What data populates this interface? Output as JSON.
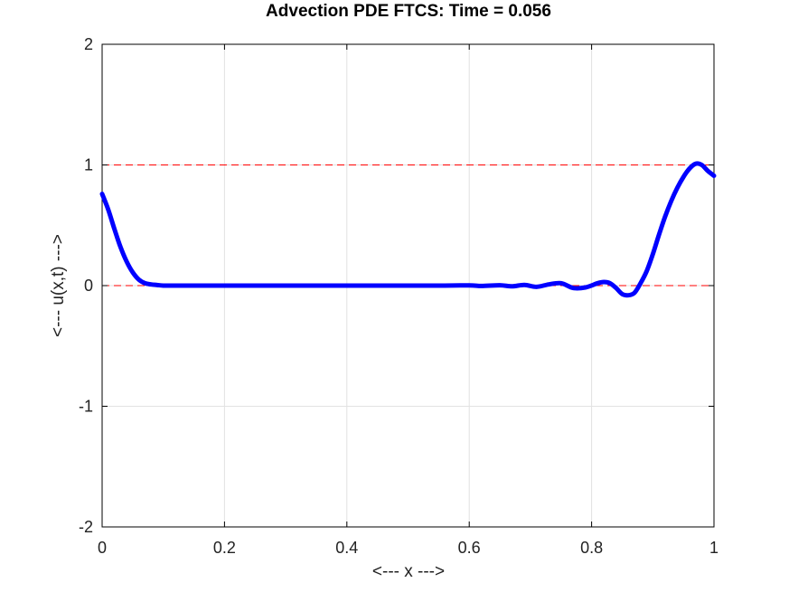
{
  "chart_data": {
    "type": "line",
    "title": "Advection PDE FTCS: Time = 0.056",
    "xlabel": "<--- x --->",
    "ylabel": "<--- u(x,t) --->",
    "xlim": [
      0,
      1
    ],
    "ylim": [
      -2,
      2
    ],
    "xticks": [
      0,
      0.2,
      0.4,
      0.6,
      0.8,
      1
    ],
    "xtick_labels": [
      "0",
      "0.2",
      "0.4",
      "0.6",
      "0.8",
      "1"
    ],
    "yticks": [
      -2,
      -1,
      0,
      1,
      2
    ],
    "ytick_labels": [
      "-2",
      "-1",
      "0",
      "1",
      "2"
    ],
    "grid": true,
    "reference_lines": [
      {
        "y": 1,
        "style": "dashed",
        "color": "#ff0000"
      },
      {
        "y": 0,
        "style": "dashed",
        "color": "#ff0000"
      }
    ],
    "series": [
      {
        "color": "#0000ff",
        "x": [
          0,
          0.01,
          0.02,
          0.03,
          0.04,
          0.05,
          0.06,
          0.07,
          0.08,
          0.09,
          0.1,
          0.12,
          0.15,
          0.2,
          0.3,
          0.4,
          0.5,
          0.55,
          0.6,
          0.62,
          0.65,
          0.67,
          0.69,
          0.71,
          0.73,
          0.75,
          0.77,
          0.79,
          0.81,
          0.82,
          0.83,
          0.84,
          0.85,
          0.86,
          0.87,
          0.88,
          0.89,
          0.9,
          0.91,
          0.92,
          0.93,
          0.94,
          0.95,
          0.96,
          0.97,
          0.98,
          0.99,
          1.0
        ],
        "y": [
          0.76,
          0.63,
          0.47,
          0.32,
          0.2,
          0.11,
          0.05,
          0.02,
          0.01,
          0.005,
          0.0,
          0.0,
          0.0,
          0.0,
          0.0,
          0.0,
          0.0,
          0.0,
          0.002,
          -0.003,
          0.003,
          -0.006,
          0.006,
          -0.01,
          0.01,
          0.02,
          -0.02,
          -0.015,
          0.02,
          0.03,
          0.02,
          -0.02,
          -0.07,
          -0.08,
          -0.06,
          0.02,
          0.12,
          0.26,
          0.42,
          0.57,
          0.7,
          0.81,
          0.9,
          0.97,
          1.01,
          1.0,
          0.95,
          0.91
        ]
      }
    ]
  }
}
